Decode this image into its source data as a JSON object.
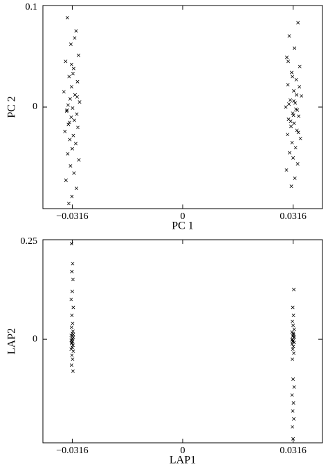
{
  "chart_data": [
    {
      "type": "scatter",
      "x_label": "PC 1",
      "y_label": "PC 2",
      "xlim": [
        -0.04,
        0.04
      ],
      "ylim": [
        -0.1,
        0.1
      ],
      "xticks": [
        {
          "value": -0.0316,
          "label": "−0.0316"
        },
        0,
        0.0316
      ],
      "yticks": [
        0.1,
        0
      ],
      "series": [
        {
          "color": "#000000",
          "x": [
            -0.033,
            -0.0305,
            -0.032,
            -0.0298,
            -0.0335,
            -0.0312,
            -0.0325,
            -0.0301,
            -0.0318,
            -0.034,
            -0.0308,
            -0.0322,
            -0.0295,
            -0.0328,
            -0.0315,
            -0.0332,
            -0.0303,
            -0.0319,
            -0.031,
            -0.0327,
            -0.03,
            -0.0337,
            -0.0313,
            -0.0323,
            -0.0306,
            -0.0316,
            -0.0329,
            -0.0297,
            -0.0321,
            -0.0311,
            -0.0334,
            -0.0304,
            -0.0317,
            -0.0326,
            -0.0309,
            -0.0314,
            -0.0331,
            -0.0302,
            -0.0324,
            -0.0318
          ],
          "values": [
            0.088,
            0.075,
            0.062,
            0.051,
            0.045,
            0.038,
            0.03,
            0.025,
            0.02,
            0.015,
            0.012,
            0.008,
            0.005,
            0.002,
            -0.001,
            -0.004,
            -0.007,
            -0.01,
            -0.013,
            -0.017,
            -0.02,
            -0.024,
            -0.028,
            -0.032,
            -0.036,
            -0.041,
            -0.046,
            -0.052,
            -0.058,
            -0.065,
            -0.072,
            -0.08,
            -0.088,
            -0.095,
            0.068,
            0.033,
            -0.003,
            0.01,
            -0.015,
            0.042
          ]
        },
        {
          "color": "#000000",
          "x": [
            0.033,
            0.0305,
            0.032,
            0.0298,
            0.0335,
            0.0312,
            0.0325,
            0.0301,
            0.0318,
            0.034,
            0.0308,
            0.0322,
            0.0295,
            0.0328,
            0.0315,
            0.0332,
            0.0303,
            0.0319,
            0.031,
            0.0327,
            0.03,
            0.0337,
            0.0313,
            0.0323,
            0.0306,
            0.0316,
            0.0329,
            0.0297,
            0.0321,
            0.0311,
            0.0334,
            0.0304,
            0.0317,
            0.0326,
            0.0309,
            0.0314,
            0.0331,
            0.0302,
            0.0324,
            0.0318
          ],
          "values": [
            0.083,
            0.07,
            0.058,
            0.049,
            0.04,
            0.034,
            0.027,
            0.022,
            0.016,
            0.011,
            0.007,
            0.004,
            0.0,
            -0.003,
            -0.006,
            -0.009,
            -0.012,
            -0.016,
            -0.019,
            -0.023,
            -0.027,
            -0.031,
            -0.035,
            -0.04,
            -0.045,
            -0.05,
            -0.056,
            -0.062,
            -0.07,
            -0.078,
            0.02,
            0.003,
            -0.008,
            0.012,
            -0.014,
            0.03,
            -0.025,
            0.045,
            -0.002,
            0.006
          ]
        }
      ]
    },
    {
      "type": "scatter",
      "x_label": "LAP1",
      "y_label": "LAP2",
      "xlim": [
        -0.04,
        0.04
      ],
      "ylim": [
        -0.26,
        0.25
      ],
      "xticks": [
        {
          "value": -0.0316,
          "label": "−0.0316"
        },
        0,
        0.0316
      ],
      "yticks": [
        0.25,
        0
      ],
      "series": [
        {
          "color": "#000000",
          "x": [
            -0.0318,
            -0.0315,
            -0.0317,
            -0.0314,
            -0.0316,
            -0.0319,
            -0.0313,
            -0.0317,
            -0.0315,
            -0.0318,
            -0.0314,
            -0.0316,
            -0.0319,
            -0.0313,
            -0.0317,
            -0.0315,
            -0.0318,
            -0.0314,
            -0.0316,
            -0.0319,
            -0.0313,
            -0.0317,
            -0.0315,
            -0.0318,
            -0.0314,
            -0.0316,
            -0.0319,
            -0.0313,
            -0.0317,
            -0.0315
          ],
          "values": [
            0.24,
            0.19,
            0.17,
            0.15,
            0.12,
            0.1,
            0.08,
            0.06,
            0.04,
            0.03,
            0.02,
            0.015,
            0.01,
            0.005,
            0.0,
            -0.005,
            -0.01,
            -0.015,
            -0.02,
            -0.025,
            -0.03,
            -0.04,
            -0.05,
            -0.065,
            -0.08,
            0.008,
            -0.003,
            0.012,
            -0.008,
            0.002
          ]
        },
        {
          "color": "#000000",
          "x": [
            0.0318,
            0.0315,
            0.0317,
            0.0314,
            0.0316,
            0.0319,
            0.0313,
            0.0317,
            0.0315,
            0.0318,
            0.0314,
            0.0316,
            0.0319,
            0.0313,
            0.0317,
            0.0315,
            0.0318,
            0.0314,
            0.0316,
            0.0319,
            0.0313,
            0.0317,
            0.0315,
            0.0318,
            0.0314,
            0.0316,
            0.0319,
            0.0313,
            0.0317,
            0.0315
          ],
          "values": [
            0.125,
            0.08,
            0.06,
            0.045,
            0.035,
            0.025,
            0.018,
            0.012,
            0.008,
            0.004,
            0.0,
            -0.004,
            -0.008,
            -0.012,
            -0.018,
            -0.025,
            -0.035,
            -0.05,
            -0.1,
            -0.12,
            -0.14,
            -0.16,
            -0.18,
            -0.2,
            -0.22,
            -0.25,
            0.006,
            -0.002,
            0.015,
            -0.006
          ]
        }
      ]
    }
  ]
}
